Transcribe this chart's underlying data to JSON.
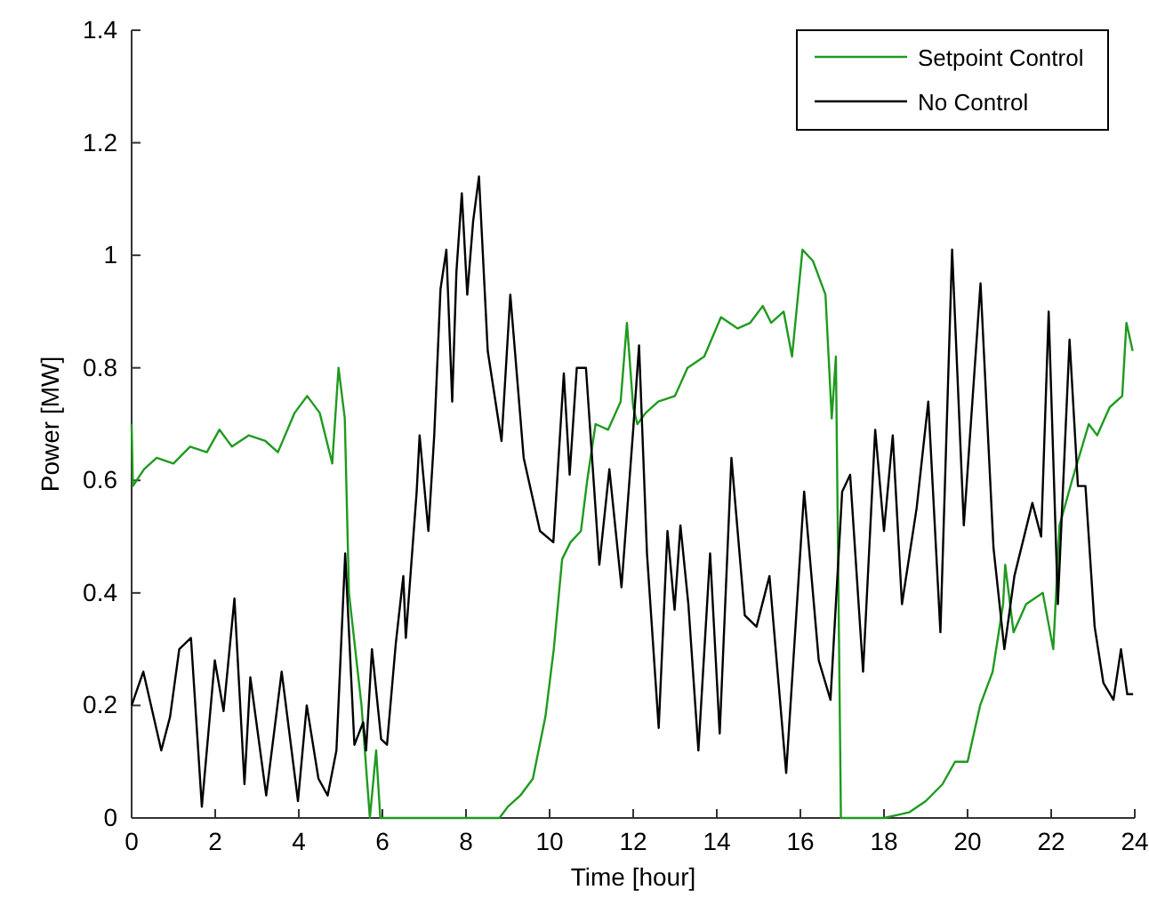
{
  "chart_data": {
    "type": "line",
    "xlabel": "Time [hour]",
    "ylabel": "Power [MW]",
    "xlim": [
      0,
      24
    ],
    "xticks": [
      0,
      2,
      4,
      6,
      8,
      10,
      12,
      14,
      16,
      18,
      20,
      22,
      24
    ],
    "ylim": [
      0,
      1.4
    ],
    "yticks": [
      0,
      0.2,
      0.4,
      0.6,
      0.8,
      1,
      1.2,
      1.4
    ],
    "legend": "top right",
    "marker": "none",
    "line_style": "solid",
    "series": [
      {
        "name": "Setpoint Control",
        "color": "#1f9a1f",
        "x": [
          0,
          0.03,
          0.3,
          0.6,
          1.0,
          1.4,
          1.8,
          2.1,
          2.4,
          2.8,
          3.2,
          3.5,
          3.9,
          4.2,
          4.5,
          4.8,
          4.95,
          5.1,
          5.2,
          5.5,
          5.7,
          5.85,
          5.95,
          8.8,
          9.0,
          9.3,
          9.6,
          9.9,
          10.1,
          10.3,
          10.5,
          10.75,
          10.9,
          11.1,
          11.4,
          11.7,
          11.85,
          12.0,
          12.1,
          12.3,
          12.6,
          13.0,
          13.3,
          13.7,
          14.1,
          14.5,
          14.8,
          15.1,
          15.3,
          15.6,
          15.8,
          16.05,
          16.3,
          16.6,
          16.75,
          16.85,
          16.97,
          18.0,
          18.6,
          19.0,
          19.4,
          19.7,
          20.0,
          20.3,
          20.6,
          20.85,
          20.9,
          21.1,
          21.4,
          21.8,
          22.05,
          22.2,
          22.5,
          22.9,
          23.1,
          23.4,
          23.7,
          23.8,
          23.95
        ],
        "values": [
          0.7,
          0.59,
          0.62,
          0.64,
          0.63,
          0.66,
          0.65,
          0.69,
          0.66,
          0.68,
          0.67,
          0.65,
          0.72,
          0.75,
          0.72,
          0.63,
          0.8,
          0.71,
          0.4,
          0.2,
          0.0,
          0.12,
          0.0,
          0.0,
          0.02,
          0.04,
          0.07,
          0.18,
          0.3,
          0.46,
          0.49,
          0.51,
          0.6,
          0.7,
          0.69,
          0.74,
          0.88,
          0.73,
          0.7,
          0.72,
          0.74,
          0.75,
          0.8,
          0.82,
          0.89,
          0.87,
          0.88,
          0.91,
          0.88,
          0.9,
          0.82,
          1.01,
          0.99,
          0.93,
          0.71,
          0.82,
          0.0,
          0.0,
          0.01,
          0.03,
          0.06,
          0.1,
          0.1,
          0.2,
          0.26,
          0.38,
          0.45,
          0.33,
          0.38,
          0.4,
          0.3,
          0.52,
          0.6,
          0.7,
          0.68,
          0.73,
          0.75,
          0.88,
          0.83
        ]
      },
      {
        "name": "No Control",
        "color": "#000000",
        "x": [
          0,
          0.28,
          0.71,
          0.92,
          1.14,
          1.42,
          1.68,
          1.99,
          2.2,
          2.46,
          2.7,
          2.84,
          3.22,
          3.59,
          3.98,
          4.19,
          4.47,
          4.69,
          4.9,
          5.11,
          5.33,
          5.54,
          5.61,
          5.75,
          5.97,
          6.11,
          6.32,
          6.5,
          6.56,
          6.82,
          6.89,
          7.1,
          7.24,
          7.39,
          7.53,
          7.67,
          7.77,
          7.9,
          8.03,
          8.17,
          8.31,
          8.52,
          8.85,
          9.06,
          9.38,
          9.77,
          10.09,
          10.34,
          10.48,
          10.65,
          10.87,
          11.19,
          11.43,
          11.72,
          12.0,
          12.14,
          12.33,
          12.61,
          12.82,
          12.99,
          13.13,
          13.32,
          13.56,
          13.84,
          14.07,
          14.35,
          14.67,
          14.95,
          15.26,
          15.66,
          16.09,
          16.44,
          16.72,
          17.0,
          17.19,
          17.5,
          17.79,
          18.0,
          18.21,
          18.43,
          18.78,
          19.06,
          19.35,
          19.63,
          19.91,
          20.31,
          20.62,
          20.88,
          21.12,
          21.55,
          21.76,
          21.94,
          22.16,
          22.44,
          22.64,
          22.82,
          23.04,
          23.25,
          23.49,
          23.67,
          23.82,
          23.96
        ],
        "values": [
          0.2,
          0.26,
          0.12,
          0.18,
          0.3,
          0.32,
          0.02,
          0.28,
          0.19,
          0.39,
          0.06,
          0.25,
          0.04,
          0.26,
          0.03,
          0.2,
          0.07,
          0.04,
          0.12,
          0.47,
          0.13,
          0.17,
          0.12,
          0.3,
          0.14,
          0.13,
          0.31,
          0.43,
          0.32,
          0.58,
          0.68,
          0.51,
          0.68,
          0.94,
          1.01,
          0.74,
          0.97,
          1.11,
          0.93,
          1.06,
          1.14,
          0.83,
          0.67,
          0.93,
          0.64,
          0.51,
          0.49,
          0.79,
          0.61,
          0.8,
          0.8,
          0.45,
          0.62,
          0.41,
          0.69,
          0.84,
          0.47,
          0.16,
          0.51,
          0.37,
          0.52,
          0.38,
          0.12,
          0.47,
          0.15,
          0.64,
          0.36,
          0.34,
          0.43,
          0.08,
          0.58,
          0.28,
          0.21,
          0.58,
          0.61,
          0.26,
          0.69,
          0.51,
          0.68,
          0.38,
          0.55,
          0.74,
          0.33,
          1.01,
          0.52,
          0.95,
          0.48,
          0.3,
          0.43,
          0.56,
          0.5,
          0.9,
          0.38,
          0.85,
          0.59,
          0.59,
          0.34,
          0.24,
          0.21,
          0.3,
          0.22,
          0.22
        ]
      }
    ]
  }
}
